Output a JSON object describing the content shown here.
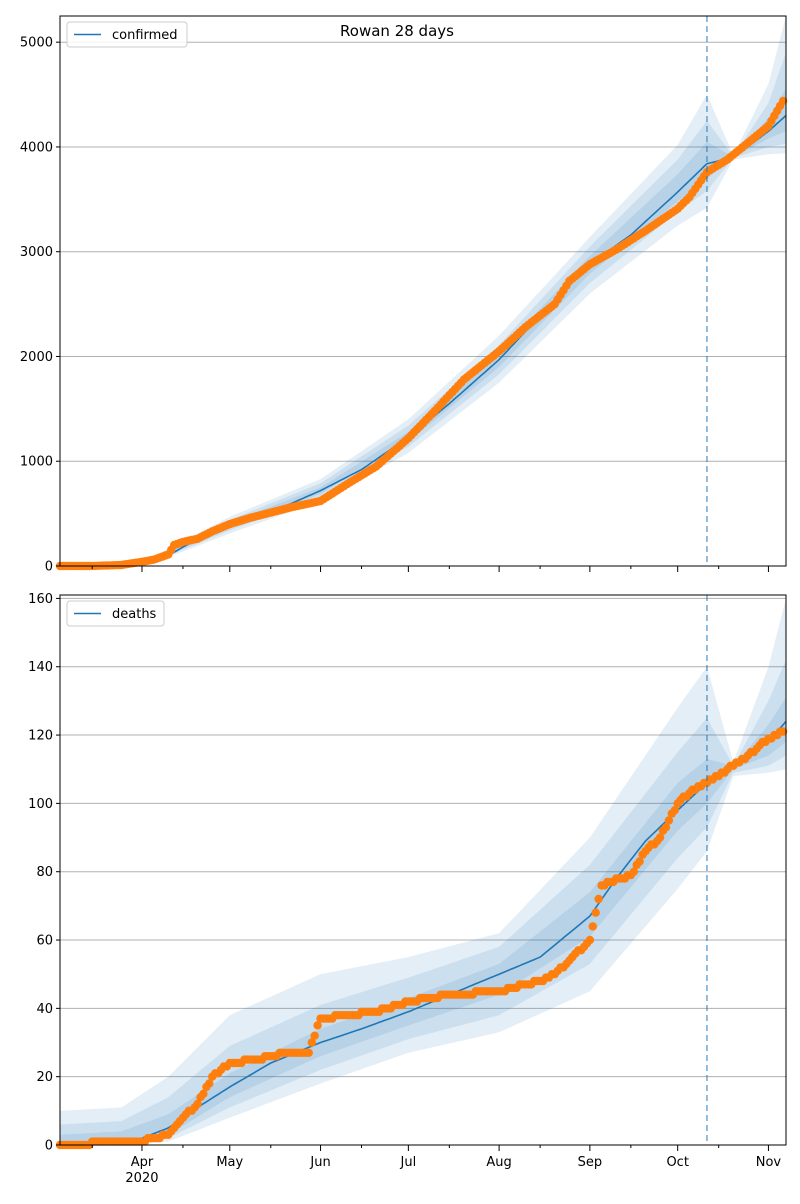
{
  "title": "Rowan 28 days",
  "x_axis": {
    "ticks": [
      "Apr\n2020",
      "May",
      "Jun",
      "Jul",
      "Aug",
      "Sep",
      "Oct",
      "Nov"
    ],
    "tick_dates": [
      "2020-04-01",
      "2020-05-01",
      "2020-06-01",
      "2020-07-01",
      "2020-08-01",
      "2020-09-01",
      "2020-10-01",
      "2020-11-01"
    ],
    "minor_tick_dates": [
      "2020-03-15",
      "2020-04-15",
      "2020-05-15",
      "2020-06-15",
      "2020-07-15",
      "2020-08-15",
      "2020-09-15",
      "2020-10-15"
    ],
    "range": [
      "2020-03-04",
      "2020-11-07"
    ]
  },
  "forecast_start": "2020-10-11",
  "colors": {
    "model": "#1f77b4",
    "observed": "#ff7f0e",
    "band": "#1f77b4",
    "grid": "#b0b0b0"
  },
  "chart_data": [
    {
      "type": "line",
      "panel": "top",
      "legend": "confirmed",
      "legend_placement": "upper left",
      "grid": "y",
      "ylim": [
        0,
        5250
      ],
      "yticks": [
        0,
        1000,
        2000,
        3000,
        4000,
        5000
      ],
      "model_line": {
        "dates": [
          "2020-03-04",
          "2020-03-20",
          "2020-04-01",
          "2020-04-10",
          "2020-04-20",
          "2020-05-01",
          "2020-05-15",
          "2020-06-01",
          "2020-06-15",
          "2020-07-01",
          "2020-07-15",
          "2020-08-01",
          "2020-08-15",
          "2020-09-01",
          "2020-09-15",
          "2020-10-01",
          "2020-10-11",
          "2020-10-20",
          "2020-11-01",
          "2020-11-07"
        ],
        "values": [
          0,
          5,
          40,
          100,
          260,
          390,
          510,
          720,
          920,
          1230,
          1550,
          1970,
          2390,
          2880,
          3160,
          3570,
          3840,
          3900,
          4150,
          4300
        ]
      },
      "bands": [
        {
          "level": "outer",
          "dates": [
            "2020-04-05",
            "2020-05-01",
            "2020-06-01",
            "2020-07-01",
            "2020-08-01",
            "2020-09-01",
            "2020-10-01",
            "2020-10-11",
            "2020-10-20",
            "2020-11-01",
            "2020-11-07"
          ],
          "low": [
            30,
            310,
            620,
            1080,
            1750,
            2600,
            3250,
            3420,
            3880,
            3930,
            3940
          ],
          "high": [
            90,
            470,
            830,
            1400,
            2200,
            3140,
            4020,
            4500,
            3920,
            4600,
            5250
          ]
        },
        {
          "level": "middle",
          "dates": [
            "2020-04-05",
            "2020-05-01",
            "2020-06-01",
            "2020-07-01",
            "2020-08-01",
            "2020-09-01",
            "2020-10-01",
            "2020-10-11",
            "2020-10-20",
            "2020-11-01",
            "2020-11-07"
          ],
          "low": [
            40,
            340,
            660,
            1140,
            1830,
            2700,
            3380,
            3580,
            3895,
            4000,
            4030
          ],
          "high": [
            75,
            440,
            790,
            1340,
            2110,
            3050,
            3880,
            4250,
            3910,
            4420,
            4900
          ]
        },
        {
          "level": "inner",
          "dates": [
            "2020-04-05",
            "2020-05-01",
            "2020-06-01",
            "2020-07-01",
            "2020-08-01",
            "2020-09-01",
            "2020-10-01",
            "2020-10-11",
            "2020-10-20",
            "2020-11-01",
            "2020-11-07"
          ],
          "low": [
            50,
            360,
            690,
            1185,
            1900,
            2790,
            3480,
            3700,
            3900,
            4080,
            4150
          ],
          "high": [
            65,
            415,
            750,
            1280,
            2040,
            2960,
            3740,
            4050,
            3905,
            4280,
            4560
          ]
        }
      ],
      "observed": {
        "dates": [
          "2020-03-04",
          "2020-03-15",
          "2020-03-25",
          "2020-04-01",
          "2020-04-05",
          "2020-04-10",
          "2020-04-12",
          "2020-04-15",
          "2020-04-20",
          "2020-04-25",
          "2020-05-01",
          "2020-05-08",
          "2020-05-15",
          "2020-05-22",
          "2020-06-01",
          "2020-06-10",
          "2020-06-20",
          "2020-07-01",
          "2020-07-10",
          "2020-07-20",
          "2020-08-01",
          "2020-08-10",
          "2020-08-20",
          "2020-08-25",
          "2020-09-01",
          "2020-09-10",
          "2020-09-20",
          "2020-10-01",
          "2020-10-05",
          "2020-10-11",
          "2020-10-18",
          "2020-10-25",
          "2020-11-01",
          "2020-11-06"
        ],
        "values": [
          0,
          0,
          10,
          40,
          60,
          110,
          200,
          230,
          260,
          330,
          400,
          460,
          510,
          560,
          620,
          780,
          950,
          1220,
          1480,
          1780,
          2050,
          2280,
          2500,
          2720,
          2880,
          3020,
          3200,
          3410,
          3520,
          3760,
          3880,
          4040,
          4200,
          4440
        ]
      }
    },
    {
      "type": "line",
      "panel": "bottom",
      "legend": "deaths",
      "legend_placement": "upper left",
      "grid": "y",
      "ylim": [
        0,
        161
      ],
      "yticks": [
        0,
        20,
        40,
        60,
        80,
        100,
        120,
        140,
        160
      ],
      "model_line": {
        "dates": [
          "2020-03-04",
          "2020-03-25",
          "2020-04-01",
          "2020-04-10",
          "2020-04-20",
          "2020-05-01",
          "2020-05-15",
          "2020-06-01",
          "2020-06-15",
          "2020-07-01",
          "2020-07-15",
          "2020-08-01",
          "2020-08-15",
          "2020-09-01",
          "2020-09-10",
          "2020-09-20",
          "2020-10-01",
          "2020-10-11",
          "2020-10-20",
          "2020-11-01",
          "2020-11-07"
        ],
        "values": [
          0,
          1,
          2,
          5,
          11,
          17,
          24,
          30,
          34,
          39,
          44,
          50,
          55,
          67,
          78,
          89,
          98,
          106,
          111,
          118,
          124
        ]
      },
      "bands": [
        {
          "level": "outer",
          "dates": [
            "2020-03-04",
            "2020-03-25",
            "2020-04-10",
            "2020-05-01",
            "2020-06-01",
            "2020-07-01",
            "2020-08-01",
            "2020-09-01",
            "2020-10-01",
            "2020-10-11",
            "2020-10-20",
            "2020-11-01",
            "2020-11-07"
          ],
          "low": [
            0,
            0,
            1,
            8,
            18,
            27,
            33,
            45,
            75,
            86,
            108,
            109,
            110
          ],
          "high": [
            10,
            11,
            20,
            38,
            50,
            55,
            62,
            90,
            128,
            140,
            112,
            140,
            160
          ]
        },
        {
          "level": "middle",
          "dates": [
            "2020-03-04",
            "2020-03-25",
            "2020-04-10",
            "2020-05-01",
            "2020-06-01",
            "2020-07-01",
            "2020-08-01",
            "2020-09-01",
            "2020-10-01",
            "2020-10-11",
            "2020-10-20",
            "2020-11-01",
            "2020-11-07"
          ],
          "low": [
            0,
            0,
            2,
            11,
            22,
            31,
            38,
            53,
            84,
            93,
            109,
            111,
            114
          ],
          "high": [
            6,
            7,
            14,
            29,
            41,
            49,
            58,
            82,
            115,
            125,
            111,
            130,
            142
          ]
        },
        {
          "level": "inner",
          "dates": [
            "2020-03-04",
            "2020-03-25",
            "2020-04-10",
            "2020-05-01",
            "2020-06-01",
            "2020-07-01",
            "2020-08-01",
            "2020-09-01",
            "2020-10-01",
            "2020-10-11",
            "2020-10-20",
            "2020-11-01",
            "2020-11-07"
          ],
          "low": [
            0,
            0,
            3,
            14,
            26,
            35,
            44,
            61,
            92,
            100,
            110,
            114,
            118
          ],
          "high": [
            3,
            4,
            9,
            21,
            34,
            43,
            53,
            74,
            106,
            113,
            111,
            123,
            131
          ]
        }
      ],
      "observed": {
        "dates": [
          "2020-03-04",
          "2020-03-25",
          "2020-04-01",
          "2020-04-05",
          "2020-04-10",
          "2020-04-15",
          "2020-04-20",
          "2020-04-25",
          "2020-05-01",
          "2020-05-10",
          "2020-05-20",
          "2020-05-28",
          "2020-06-01",
          "2020-06-10",
          "2020-06-20",
          "2020-07-01",
          "2020-07-15",
          "2020-08-01",
          "2020-08-15",
          "2020-08-20",
          "2020-08-25",
          "2020-09-01",
          "2020-09-05",
          "2020-09-15",
          "2020-09-20",
          "2020-09-25",
          "2020-10-01",
          "2020-10-05",
          "2020-10-11",
          "2020-10-18",
          "2020-10-25",
          "2020-11-01",
          "2020-11-06"
        ],
        "values": [
          0,
          1,
          1,
          2,
          3,
          8,
          12,
          20,
          24,
          25,
          27,
          27,
          37,
          38,
          39,
          42,
          44,
          45,
          48,
          50,
          54,
          60,
          76,
          79,
          86,
          90,
          100,
          103,
          106,
          110,
          114,
          119,
          121
        ]
      }
    }
  ]
}
